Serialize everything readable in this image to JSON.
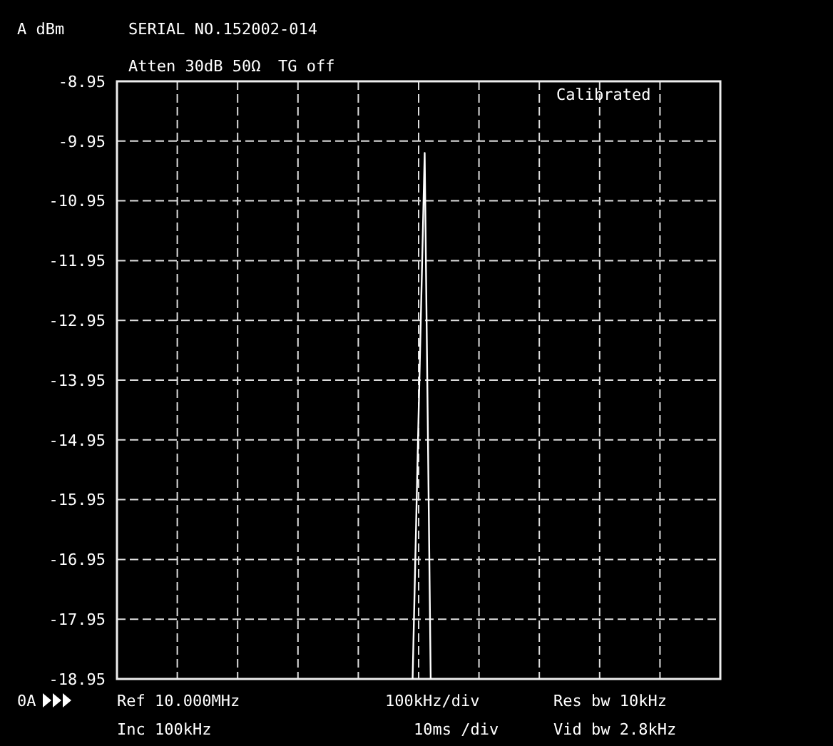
{
  "chart_data": {
    "type": "line",
    "ylabel": "A dBm",
    "categories": [
      null,
      null,
      null,
      null,
      null,
      null,
      null,
      null,
      null,
      null,
      null,
      null,
      null,
      null,
      null,
      null,
      null,
      null,
      null,
      null,
      null,
      null,
      null,
      null,
      null,
      null,
      null,
      null,
      null,
      null,
      null,
      null,
      null,
      null,
      null,
      null,
      null,
      null,
      null,
      null,
      null,
      null,
      null,
      null,
      null,
      null,
      null,
      null,
      null,
      null,
      null,
      null,
      null,
      null,
      null,
      null,
      null,
      null,
      null,
      null,
      null,
      null,
      null,
      null,
      null,
      null,
      null,
      null,
      null,
      null,
      null,
      null,
      null,
      null,
      null,
      null,
      null,
      null,
      null,
      null,
      null,
      null,
      null,
      null,
      null,
      null,
      null,
      null,
      null,
      null,
      null,
      null,
      null,
      null,
      null,
      null,
      null,
      null,
      null,
      null,
      null
    ],
    "series": [
      {
        "color": "#ffffff",
        "values": [
          null,
          null,
          null,
          null,
          null,
          null,
          null,
          null,
          null,
          null,
          null,
          null,
          null,
          null,
          null,
          null,
          null,
          null,
          null,
          null,
          null,
          null,
          null,
          null,
          null,
          null,
          null,
          null,
          null,
          null,
          null,
          null,
          null,
          null,
          null,
          null,
          null,
          null,
          null,
          null,
          null,
          null,
          null,
          null,
          null,
          null,
          null,
          null,
          null,
          -18.95,
          -14.5,
          -10.15,
          -18.95,
          null,
          null,
          null,
          null,
          null,
          null,
          null,
          null,
          null,
          null,
          null,
          null,
          null,
          null,
          null,
          null,
          null,
          null,
          null,
          null,
          null,
          null,
          null,
          null,
          null,
          null,
          null,
          null,
          null,
          null,
          null,
          null,
          null,
          null,
          null,
          null,
          null,
          null,
          null,
          null,
          null,
          null,
          null,
          null,
          null,
          null,
          null,
          null
        ]
      }
    ],
    "ylim": [
      -18.95,
      -8.95
    ],
    "yticks": [
      -18.95,
      -17.95,
      -16.95,
      -15.95,
      -14.95,
      -13.95,
      -12.95,
      -11.95,
      -10.95,
      -9.95,
      -8.95
    ],
    "grid": true,
    "line_style": "solid",
    "marker": "none",
    "annotations": [
      "SERIAL NO.152002-014",
      "Atten 30dB 50Ω",
      "TG off",
      "Calibrated",
      "0A",
      "Ref 10.000MHz",
      "Inc 100kHz",
      "100kHz/div",
      "10ms /div",
      "Res bw 10kHz",
      "Vid bw 2.8kHz"
    ]
  }
}
